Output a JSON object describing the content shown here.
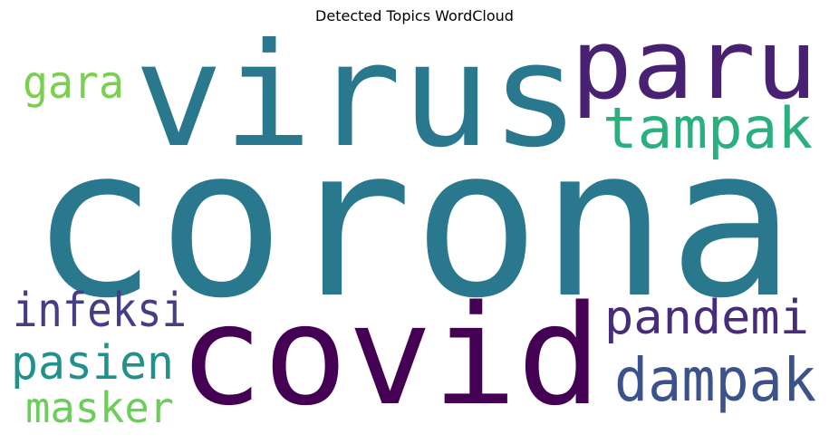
{
  "title": "Detected Topics WordCloud",
  "words": [
    {
      "text": "corona",
      "color": "#2a788e"
    },
    {
      "text": "virus",
      "color": "#2a788e"
    },
    {
      "text": "covid",
      "color": "#440154"
    },
    {
      "text": "paru",
      "color": "#482173"
    },
    {
      "text": "tampak",
      "color": "#2ab07f"
    },
    {
      "text": "dampak",
      "color": "#3b528b"
    },
    {
      "text": "pandemi",
      "color": "#472c7a"
    },
    {
      "text": "infeksi",
      "color": "#433e85"
    },
    {
      "text": "pasien",
      "color": "#21918c"
    },
    {
      "text": "gara",
      "color": "#7ad151"
    },
    {
      "text": "masker",
      "color": "#6ccd5a"
    }
  ]
}
